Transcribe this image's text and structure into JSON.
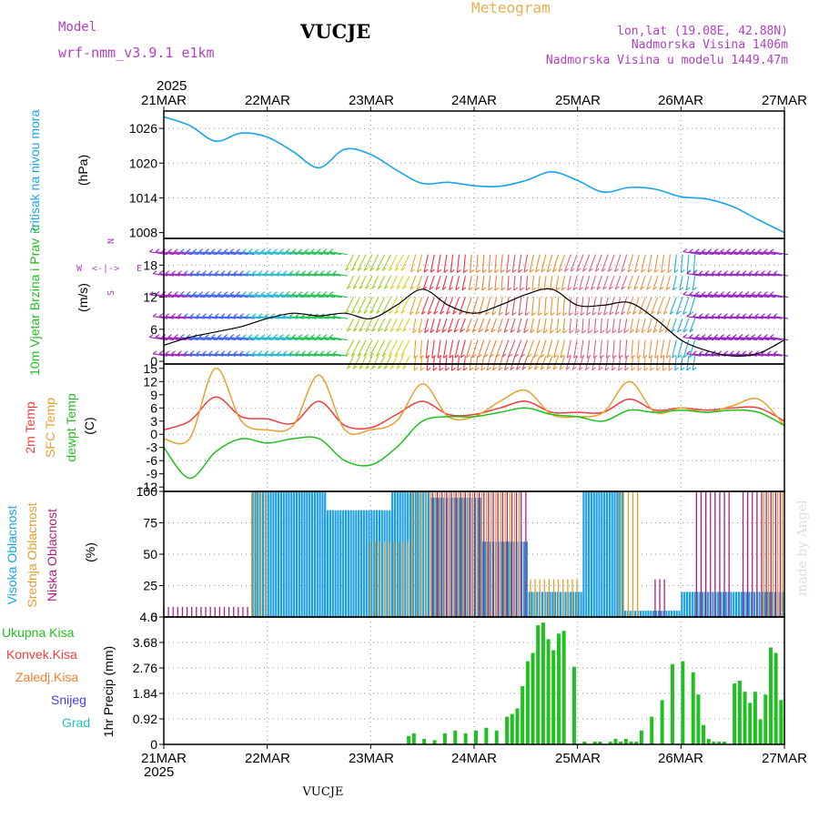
{
  "header": {
    "model_label": "Model",
    "model_name": "wrf-nmm_v3.9.1 e1km",
    "station": "VUCJE",
    "meteogram": "Meteogram",
    "lonlat": "lon,lat (19.08E, 42.88N)",
    "elevation": "Nadmorska Visina 1406m",
    "model_elevation": "Nadmorska Visina u modelu 1449.47m",
    "year_top": "2025",
    "year_bottom": "2025",
    "footer": "VUCJE",
    "credit": "made by Angel"
  },
  "colors": {
    "pressure": "#1aa3e8",
    "temp2m": "#f03c3c",
    "sfc": "#e8a030",
    "dewpt": "#20c020",
    "high_cloud": "#1a9ee6",
    "mid_cloud": "#e0a030",
    "low_cloud": "#b0207a",
    "precip": "#20c020",
    "purple": "#b040c0"
  },
  "x_axis": {
    "dates": [
      "21MAR",
      "22MAR",
      "23MAR",
      "24MAR",
      "25MAR",
      "26MAR",
      "27MAR"
    ]
  },
  "chart_data": [
    {
      "type": "line",
      "ylabel": "Pritisak na nivou mora",
      "unit": "(hPa)",
      "y_ticks": [
        "1026",
        "1020",
        "1014",
        "1008"
      ],
      "ylim": [
        1007,
        1029
      ],
      "x": [
        0,
        0.25,
        0.5,
        0.75,
        1.0,
        1.25,
        1.5,
        1.75,
        2.0,
        2.25,
        2.5,
        2.75,
        3.0,
        3.25,
        3.5,
        3.75,
        4.0,
        4.25,
        4.5,
        4.75,
        5.0,
        5.25,
        5.5,
        5.75,
        6.0
      ],
      "series": [
        {
          "values": [
            1028.0,
            1026.5,
            1023.8,
            1025.2,
            1024.5,
            1022.0,
            1019.2,
            1022.4,
            1021.5,
            1018.8,
            1016.5,
            1016.7,
            1016.1,
            1016.0,
            1017.0,
            1018.5,
            1017.0,
            1015.0,
            1015.8,
            1015.5,
            1014.2,
            1013.8,
            1012.5,
            1010.2,
            1008.0
          ]
        }
      ]
    },
    {
      "type": "line",
      "ylabel": "10m Vjetar Brzina i Pravac",
      "unit": "(m/s)",
      "y_ticks": [
        "0",
        "6",
        "12",
        "18"
      ],
      "ylim": [
        -0.5,
        23
      ],
      "direction_legend": [
        "W",
        "<-|->",
        "E",
        "N",
        "S"
      ],
      "x": [
        0,
        0.25,
        0.5,
        0.75,
        1.0,
        1.25,
        1.5,
        1.75,
        2.0,
        2.25,
        2.5,
        2.75,
        3.0,
        3.25,
        3.5,
        3.75,
        4.0,
        4.25,
        4.5,
        4.75,
        5.0,
        5.25,
        5.5,
        5.75,
        6.0
      ],
      "series": [
        {
          "values": [
            3,
            4.5,
            5.5,
            6.5,
            8,
            9,
            8.5,
            9,
            8,
            10.5,
            13.5,
            10.5,
            9,
            10.5,
            12.5,
            13.5,
            10.5,
            10.5,
            11,
            8,
            4,
            2,
            1,
            1.5,
            4
          ]
        }
      ]
    },
    {
      "type": "line",
      "ylabel": "2m Temp",
      "ylabel2": "SFC Temp",
      "ylabel3": "dewpt Temp",
      "unit": "(C)",
      "y_ticks": [
        "15",
        "12",
        "9",
        "6",
        "3",
        "0",
        "-3",
        "-6",
        "-9",
        "-12"
      ],
      "ylim": [
        -13,
        16
      ],
      "x": [
        0,
        0.25,
        0.5,
        0.75,
        1.0,
        1.25,
        1.5,
        1.75,
        2.0,
        2.25,
        2.5,
        2.75,
        3.0,
        3.25,
        3.5,
        3.75,
        4.0,
        4.25,
        4.5,
        4.75,
        5.0,
        5.25,
        5.5,
        5.75,
        6.0
      ],
      "series": [
        {
          "name": "2m Temp",
          "values": [
            1,
            3,
            8.5,
            4,
            3.5,
            2.5,
            7.5,
            2,
            1.5,
            4.5,
            7.5,
            4.5,
            4.5,
            6,
            7.5,
            5,
            5,
            5,
            8,
            5.5,
            6,
            5.5,
            6,
            6,
            3
          ]
        },
        {
          "name": "SFC Temp",
          "values": [
            -1,
            -1,
            15,
            3,
            1,
            2,
            13.5,
            1,
            1,
            3,
            11.5,
            4,
            4,
            7.5,
            10,
            4.5,
            4,
            5,
            12,
            5,
            6,
            5,
            6.5,
            8,
            2
          ]
        },
        {
          "name": "dewpt Temp",
          "values": [
            -3,
            -10,
            -4,
            -1,
            -2,
            -1,
            -1,
            -6,
            -7,
            -3,
            3,
            4,
            4,
            5,
            6,
            4.5,
            4,
            3,
            5.5,
            5,
            5.5,
            5,
            5.5,
            5,
            2
          ]
        }
      ]
    },
    {
      "type": "bar",
      "ylabel": "Visoka Oblacnost",
      "ylabel2": "Srednja Oblacnost",
      "ylabel3": "Niska Oblacnost",
      "unit": "(%)",
      "y_ticks": [
        "100",
        "75",
        "50",
        "25",
        "0"
      ],
      "ylim": [
        0,
        100
      ],
      "series": [
        {
          "name": "Visoka Oblacnost",
          "segments": [
            [
              0.85,
              1.55,
              100
            ],
            [
              1.55,
              2.2,
              85
            ],
            [
              2.2,
              2.55,
              100
            ],
            [
              2.55,
              3.05,
              95
            ],
            [
              3.05,
              3.5,
              60
            ],
            [
              3.5,
              4.05,
              20
            ],
            [
              4.05,
              4.45,
              100
            ],
            [
              4.45,
              5.0,
              5
            ],
            [
              5.0,
              6.0,
              20
            ]
          ]
        },
        {
          "name": "Srednja Oblacnost",
          "segments": [
            [
              0.85,
              1.0,
              100
            ],
            [
              2.0,
              2.4,
              60
            ],
            [
              2.4,
              3.45,
              100
            ],
            [
              3.5,
              4.0,
              30
            ],
            [
              4.4,
              4.6,
              100
            ],
            [
              5.15,
              5.25,
              100
            ],
            [
              5.8,
              6.0,
              100
            ]
          ]
        },
        {
          "name": "Niska Oblacnost",
          "segments": [
            [
              0.0,
              0.85,
              8
            ],
            [
              2.6,
              3.5,
              100
            ],
            [
              4.75,
              4.85,
              30
            ],
            [
              5.15,
              5.5,
              100
            ],
            [
              5.6,
              6.0,
              100
            ]
          ]
        }
      ]
    },
    {
      "type": "bar",
      "ylabel": "1hr Precip",
      "unit": "(mm)",
      "legend": [
        "Ukupna Kisa",
        "Konvek.Kisa",
        "Zaledj.Kisa",
        "Snijeg",
        "Grad"
      ],
      "y_ticks": [
        "4.6",
        "3.68",
        "2.76",
        "1.84",
        "0.92",
        "0"
      ],
      "ylim": [
        0,
        4.6
      ],
      "x": [
        2.35,
        2.4,
        2.5,
        2.6,
        2.7,
        2.8,
        2.9,
        3.0,
        3.1,
        3.2,
        3.3,
        3.35,
        3.4,
        3.45,
        3.5,
        3.55,
        3.6,
        3.65,
        3.7,
        3.75,
        3.8,
        3.85,
        3.95,
        4.05,
        4.15,
        4.2,
        4.3,
        4.35,
        4.4,
        4.45,
        4.5,
        4.55,
        4.6,
        4.7,
        4.8,
        4.9,
        5.0,
        5.1,
        5.15,
        5.2,
        5.25,
        5.3,
        5.35,
        5.4,
        5.5,
        5.55,
        5.6,
        5.65,
        5.7,
        5.75,
        5.8,
        5.85,
        5.9,
        5.95
      ],
      "values": [
        0.3,
        0.4,
        0.2,
        0.15,
        0.4,
        0.5,
        0.4,
        0.5,
        0.6,
        0.5,
        1.0,
        1.1,
        1.3,
        2.1,
        3.0,
        3.3,
        4.3,
        4.4,
        3.8,
        3.4,
        4.0,
        4.1,
        2.8,
        0.1,
        0.1,
        0.1,
        0.1,
        0.2,
        0.1,
        0.2,
        0.1,
        0.1,
        0.5,
        1.0,
        1.6,
        2.9,
        3.0,
        2.6,
        1.8,
        0.7,
        0.2,
        0.1,
        0.1,
        0.1,
        2.2,
        2.3,
        1.9,
        1.5,
        1.9,
        0.9,
        1.8,
        3.5,
        3.3,
        1.6
      ]
    }
  ]
}
